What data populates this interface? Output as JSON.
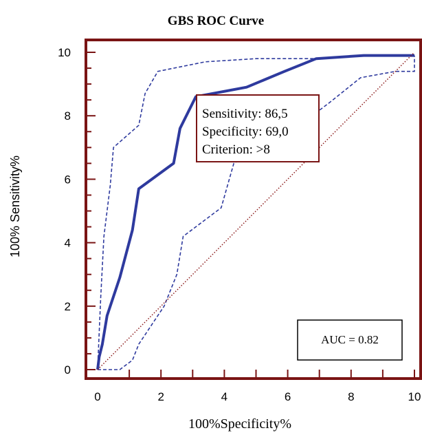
{
  "chart_data": {
    "type": "line",
    "title": "GBS ROC Curve",
    "xlabel": "100%Specificity%",
    "ylabel": "100% Sensitivity%",
    "xlim": [
      0,
      10
    ],
    "ylim": [
      0,
      10
    ],
    "x_ticks": [
      "0",
      "2",
      "4",
      "6",
      "8",
      "10"
    ],
    "y_ticks": [
      "0",
      "2",
      "4",
      "6",
      "8",
      "10"
    ],
    "grid": false,
    "colors": {
      "curve": "#2e3a9e",
      "confidence_band": "#2e3a9e",
      "reference_line": "#8b1a1a",
      "frame": "#7a1414",
      "callout_border": "#7a1414",
      "text": "#000000"
    },
    "series": [
      {
        "role": "roc-curve",
        "style": "solid",
        "points": [
          [
            0,
            0
          ],
          [
            0.05,
            0.4
          ],
          [
            0.15,
            0.8
          ],
          [
            0.3,
            1.7
          ],
          [
            0.7,
            2.9
          ],
          [
            1.1,
            4.4
          ],
          [
            1.3,
            5.7
          ],
          [
            2.4,
            6.5
          ],
          [
            2.6,
            7.6
          ],
          [
            3.1,
            8.6
          ],
          [
            4.7,
            8.9
          ],
          [
            5.9,
            9.4
          ],
          [
            6.9,
            9.8
          ],
          [
            8.4,
            9.9
          ],
          [
            10,
            9.9
          ]
        ]
      },
      {
        "role": "upper-confidence-bound",
        "style": "dashed",
        "points": [
          [
            0,
            0
          ],
          [
            0.1,
            2.3
          ],
          [
            0.2,
            4.2
          ],
          [
            0.4,
            5.8
          ],
          [
            0.5,
            7.0
          ],
          [
            1.3,
            7.7
          ],
          [
            1.5,
            8.7
          ],
          [
            1.9,
            9.4
          ],
          [
            3.4,
            9.7
          ],
          [
            5.0,
            9.8
          ],
          [
            6.9,
            9.8
          ],
          [
            8.4,
            9.9
          ],
          [
            10,
            9.9
          ]
        ]
      },
      {
        "role": "lower-confidence-bound",
        "style": "dashed",
        "points": [
          [
            0,
            0
          ],
          [
            0.7,
            0
          ],
          [
            1.1,
            0.3
          ],
          [
            1.3,
            0.8
          ],
          [
            2.1,
            2.0
          ],
          [
            2.5,
            3.0
          ],
          [
            2.7,
            4.2
          ],
          [
            3.9,
            5.1
          ],
          [
            4.3,
            6.5
          ],
          [
            6.1,
            7.5
          ],
          [
            7.3,
            8.4
          ],
          [
            8.3,
            9.2
          ],
          [
            9.4,
            9.4
          ],
          [
            10,
            9.4
          ],
          [
            10,
            9.9
          ]
        ]
      },
      {
        "role": "reference-line",
        "style": "dotted",
        "points": [
          [
            0,
            0
          ],
          [
            10,
            10
          ]
        ]
      }
    ],
    "callout": {
      "lines": [
        "Sensitivity: 86,5",
        "Specificity: 69,0",
        "Criterion: >8"
      ],
      "anchor_point": [
        3.1,
        8.6
      ]
    },
    "auc_label": "AUC = 0.82"
  }
}
